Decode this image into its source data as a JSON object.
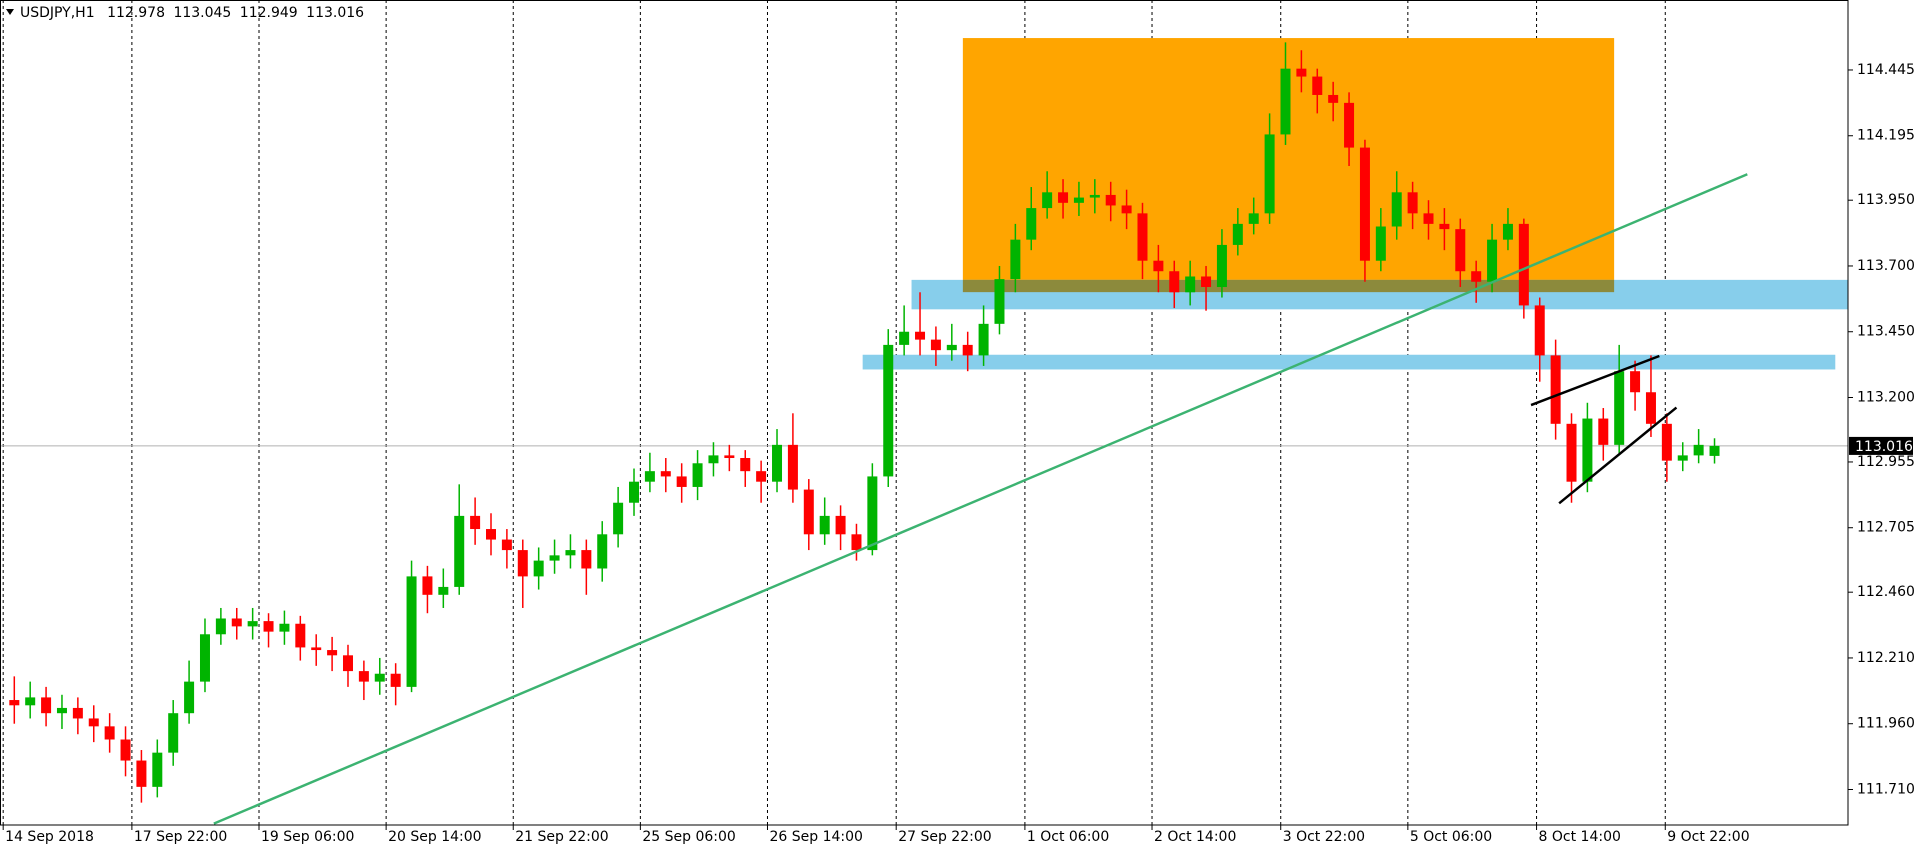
{
  "chart_data": {
    "type": "candlestick",
    "title": "USDJPY,H1",
    "ohlc_header": [
      112.978,
      113.045,
      112.949,
      113.016
    ],
    "up_color": "#00b400",
    "down_color": "#ff0000",
    "ylim": [
      111.575,
      114.711
    ],
    "yticks": [
      {
        "value": 111.71,
        "label": "111.710"
      },
      {
        "value": 111.96,
        "label": "111.960"
      },
      {
        "value": 112.21,
        "label": "112.210"
      },
      {
        "value": 112.46,
        "label": "112.460"
      },
      112.705,
      112.955,
      {
        "value": 113.2,
        "label": "113.200"
      },
      {
        "value": 113.45,
        "label": "113.450"
      },
      {
        "value": 113.7,
        "label": "113.700"
      },
      {
        "value": 113.95,
        "label": "113.950"
      },
      114.195,
      114.445
    ],
    "xlim": [
      -0.9,
      115.4
    ],
    "xticks": [
      {
        "value": -0.7,
        "label": "14 Sep 2018"
      },
      {
        "value": 7.4,
        "label": "17 Sep 22:00"
      },
      {
        "value": 15.4,
        "label": "19 Sep 06:00"
      },
      {
        "value": 23.4,
        "label": "20 Sep 14:00"
      },
      {
        "value": 31.4,
        "label": "21 Sep 22:00"
      },
      {
        "value": 39.4,
        "label": "25 Sep 06:00"
      },
      {
        "value": 47.4,
        "label": "26 Sep 14:00"
      },
      {
        "value": 55.5,
        "label": "27 Sep 22:00"
      },
      {
        "value": 63.6,
        "label": "1 Oct 06:00"
      },
      {
        "value": 71.6,
        "label": "2 Oct 14:00"
      },
      {
        "value": 79.7,
        "label": "3 Oct 22:00"
      },
      {
        "value": 87.7,
        "label": "5 Oct 06:00"
      },
      {
        "value": 95.8,
        "label": "8 Oct 14:00"
      },
      {
        "value": 103.9,
        "label": "9 Oct 22:00"
      }
    ],
    "grid": true,
    "open": [
      112.05,
      112.03,
      112.06,
      112.0,
      112.02,
      111.98,
      111.95,
      111.9,
      111.82,
      111.72,
      111.85,
      112.0,
      112.12,
      112.3,
      112.36,
      112.33,
      112.35,
      112.31,
      112.34,
      112.25,
      112.24,
      112.22,
      112.16,
      112.12,
      112.15,
      112.1,
      112.52,
      112.45,
      112.48,
      112.75,
      112.7,
      112.66,
      112.62,
      112.52,
      112.58,
      112.6,
      112.62,
      112.55,
      112.68,
      112.8,
      112.88,
      112.92,
      112.9,
      112.86,
      112.95,
      112.98,
      112.97,
      112.92,
      112.88,
      113.02,
      112.85,
      112.68,
      112.75,
      112.68,
      112.62,
      112.9,
      113.4,
      113.45,
      113.42,
      113.38,
      113.4,
      113.36,
      113.48,
      113.65,
      113.8,
      113.92,
      113.98,
      113.94,
      113.96,
      113.97,
      113.93,
      113.9,
      113.72,
      113.68,
      113.6,
      113.66,
      113.62,
      113.78,
      113.86,
      113.9,
      114.2,
      114.45,
      114.42,
      114.35,
      114.32,
      114.15,
      113.72,
      113.85,
      113.98,
      113.9,
      113.86,
      113.84,
      113.68,
      113.64,
      113.8,
      113.86,
      113.55,
      113.36,
      113.1,
      112.88,
      113.12,
      113.02,
      113.3,
      113.22,
      113.1,
      112.96,
      112.98,
      112.978
    ],
    "high": [
      112.14,
      112.12,
      112.1,
      112.07,
      112.06,
      112.03,
      112.0,
      111.95,
      111.86,
      111.9,
      112.05,
      112.2,
      112.36,
      112.4,
      112.4,
      112.4,
      112.38,
      112.39,
      112.37,
      112.3,
      112.29,
      112.26,
      112.2,
      112.21,
      112.19,
      112.58,
      112.56,
      112.55,
      112.87,
      112.82,
      112.76,
      112.7,
      112.66,
      112.63,
      112.66,
      112.68,
      112.66,
      112.73,
      112.86,
      112.93,
      112.99,
      112.97,
      112.95,
      113.0,
      113.03,
      113.02,
      113.0,
      112.96,
      113.08,
      113.14,
      112.89,
      112.82,
      112.79,
      112.72,
      112.95,
      113.46,
      113.55,
      113.6,
      113.47,
      113.48,
      113.45,
      113.55,
      113.7,
      113.86,
      114.0,
      114.06,
      114.03,
      114.02,
      114.03,
      114.02,
      113.99,
      113.94,
      113.78,
      113.72,
      113.72,
      113.7,
      113.84,
      113.92,
      113.96,
      114.28,
      114.55,
      114.52,
      114.45,
      114.4,
      114.36,
      114.18,
      113.92,
      114.06,
      114.02,
      113.95,
      113.92,
      113.88,
      113.72,
      113.86,
      113.92,
      113.88,
      113.58,
      113.42,
      113.14,
      113.18,
      113.16,
      113.4,
      113.34,
      113.36,
      113.14,
      113.03,
      113.08,
      113.045
    ],
    "low": [
      111.96,
      111.98,
      111.95,
      111.94,
      111.92,
      111.89,
      111.85,
      111.76,
      111.66,
      111.68,
      111.8,
      111.96,
      112.08,
      112.26,
      112.28,
      112.28,
      112.25,
      112.26,
      112.2,
      112.18,
      112.16,
      112.1,
      112.05,
      112.07,
      112.03,
      112.08,
      112.38,
      112.4,
      112.45,
      112.64,
      112.6,
      112.55,
      112.4,
      112.47,
      112.53,
      112.55,
      112.45,
      112.5,
      112.63,
      112.75,
      112.84,
      112.84,
      112.8,
      112.81,
      112.9,
      112.92,
      112.86,
      112.8,
      112.84,
      112.8,
      112.62,
      112.64,
      112.62,
      112.58,
      112.6,
      112.86,
      113.36,
      113.36,
      113.32,
      113.34,
      113.3,
      113.32,
      113.44,
      113.6,
      113.76,
      113.88,
      113.88,
      113.89,
      113.9,
      113.87,
      113.84,
      113.65,
      113.6,
      113.54,
      113.55,
      113.53,
      113.58,
      113.74,
      113.82,
      113.86,
      114.16,
      114.36,
      114.28,
      114.25,
      114.08,
      113.64,
      113.68,
      113.8,
      113.84,
      113.8,
      113.76,
      113.62,
      113.56,
      113.6,
      113.76,
      113.5,
      113.26,
      113.04,
      112.8,
      112.84,
      112.96,
      112.98,
      113.15,
      113.05,
      112.88,
      112.92,
      112.95,
      112.949
    ],
    "close": [
      112.03,
      112.06,
      112.0,
      112.02,
      111.98,
      111.95,
      111.9,
      111.82,
      111.72,
      111.85,
      112.0,
      112.12,
      112.3,
      112.36,
      112.33,
      112.35,
      112.31,
      112.34,
      112.25,
      112.24,
      112.22,
      112.16,
      112.12,
      112.15,
      112.1,
      112.52,
      112.45,
      112.48,
      112.75,
      112.7,
      112.66,
      112.62,
      112.52,
      112.58,
      112.6,
      112.62,
      112.55,
      112.68,
      112.8,
      112.88,
      112.92,
      112.9,
      112.86,
      112.95,
      112.98,
      112.97,
      112.92,
      112.88,
      113.02,
      112.85,
      112.68,
      112.75,
      112.68,
      112.62,
      112.9,
      113.4,
      113.45,
      113.42,
      113.38,
      113.4,
      113.36,
      113.48,
      113.65,
      113.8,
      113.92,
      113.98,
      113.94,
      113.96,
      113.97,
      113.93,
      113.9,
      113.72,
      113.68,
      113.6,
      113.66,
      113.62,
      113.78,
      113.86,
      113.9,
      114.2,
      114.45,
      114.42,
      114.35,
      114.32,
      114.15,
      113.72,
      113.85,
      113.98,
      113.9,
      113.86,
      113.84,
      113.68,
      113.64,
      113.8,
      113.86,
      113.55,
      113.36,
      113.1,
      112.88,
      113.12,
      113.02,
      113.3,
      113.22,
      113.1,
      112.96,
      112.98,
      113.02,
      113.016
    ]
  }
}
